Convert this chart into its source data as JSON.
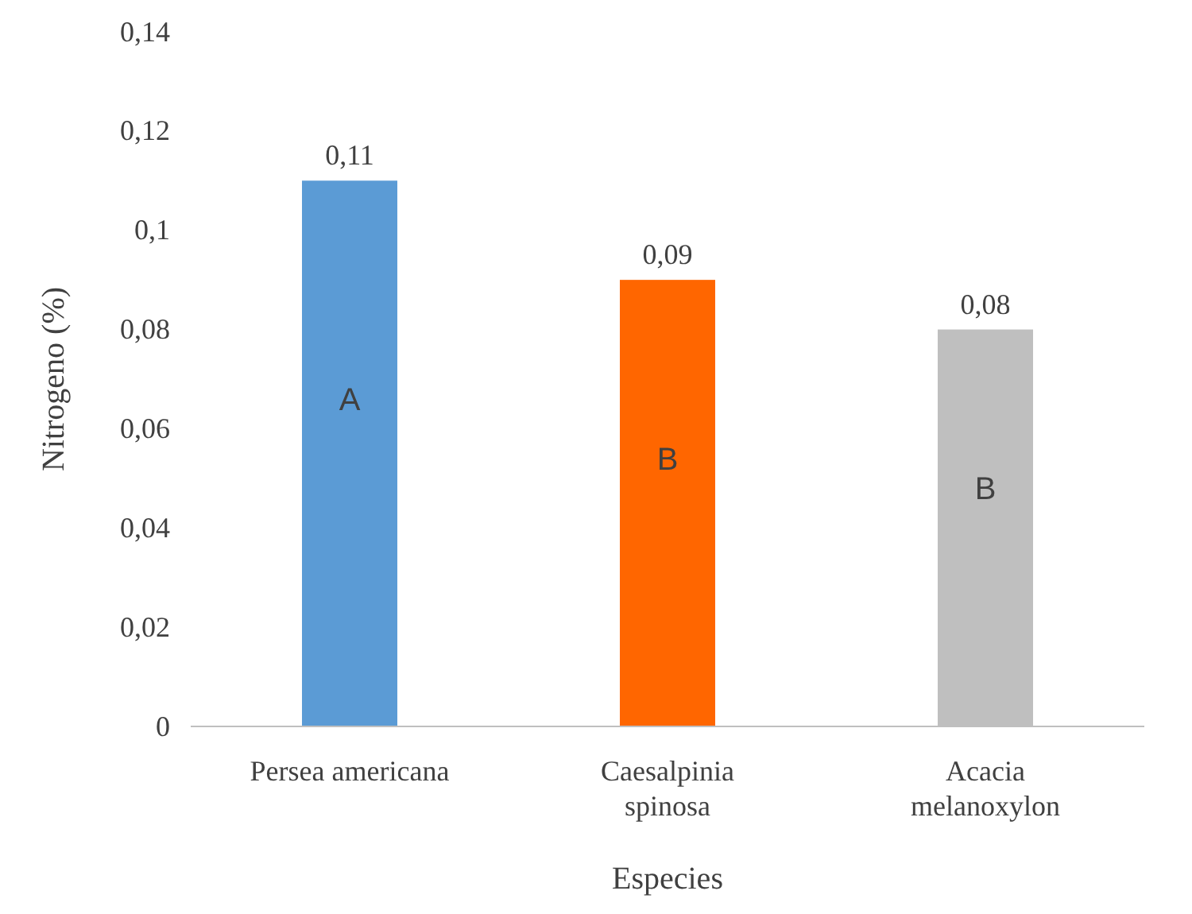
{
  "chart_data": {
    "type": "bar",
    "xlabel": "Especies",
    "ylabel": "Nitrogeno (%)",
    "categories": [
      "Persea americana",
      "Caesalpinia spinosa",
      "Acacia melanoxylon"
    ],
    "values": [
      0.11,
      0.09,
      0.08
    ],
    "colors": [
      "#5b9bd5",
      "#ff6600",
      "#bfbfbf"
    ],
    "value_labels": [
      "0,11",
      "0,09",
      "0,08"
    ],
    "ylim": [
      0,
      0.14
    ],
    "yticks": [
      0,
      {
        "value": 0.02,
        "label": "0,02"
      },
      {
        "value": 0.04,
        "label": "0,04"
      },
      {
        "value": 0.06,
        "label": "0,06"
      },
      {
        "value": 0.08,
        "label": "0,08"
      },
      {
        "value": 0.1,
        "label": "0,1"
      },
      {
        "value": 0.12,
        "label": "0,12"
      },
      {
        "value": 0.14,
        "label": "0,14"
      }
    ],
    "annotations": [
      "A",
      "B",
      "B"
    ],
    "grid": false
  }
}
